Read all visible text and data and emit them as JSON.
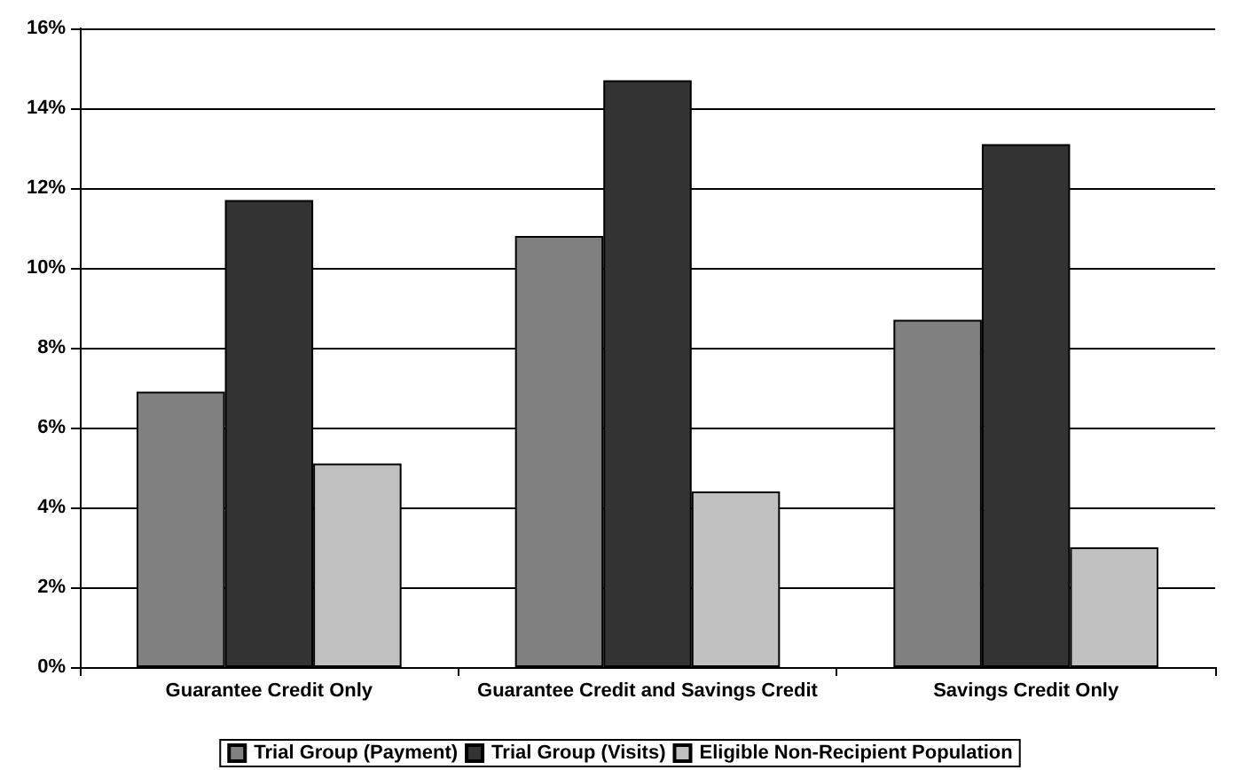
{
  "chart_data": {
    "type": "bar",
    "categories": [
      "Guarantee Credit Only",
      "Guarantee Credit and Savings Credit",
      "Savings Credit Only"
    ],
    "series": [
      {
        "name": "Trial Group (Payment)",
        "color": "#808080",
        "values": [
          6.9,
          10.8,
          8.7
        ]
      },
      {
        "name": "Trial Group (Visits)",
        "color": "#333333",
        "values": [
          11.7,
          14.7,
          13.1
        ]
      },
      {
        "name": "Eligible Non-Recipient Population",
        "color": "#c0c0c0",
        "values": [
          5.1,
          4.4,
          3.0
        ]
      }
    ],
    "ylim": [
      0,
      16
    ],
    "yticks": [
      {
        "value": 0,
        "label": "0%"
      },
      {
        "value": 2,
        "label": "2%"
      },
      {
        "value": 4,
        "label": "4%"
      },
      {
        "value": 6,
        "label": "6%"
      },
      {
        "value": 8,
        "label": "8%"
      },
      {
        "value": 10,
        "label": "10%"
      },
      {
        "value": 12,
        "label": "12%"
      },
      {
        "value": 14,
        "label": "14%"
      },
      {
        "value": 16,
        "label": "16%"
      }
    ],
    "grid": "y",
    "legend": "bottom"
  }
}
